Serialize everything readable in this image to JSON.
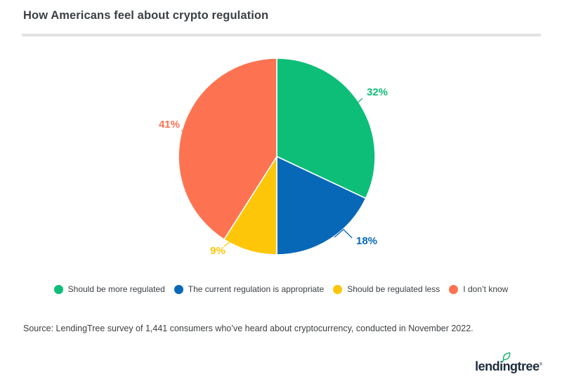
{
  "page": {
    "title": "How Americans feel about crypto regulation",
    "source": "Source: LendingTree survey of 1,441 consumers who’ve heard about cryptocurrency, conducted in November 2022.",
    "logo_text": "lendingtree",
    "logo_reg": "®"
  },
  "colors": {
    "title_text": "#3c4044",
    "divider": "#e2e2e2",
    "logo_navy": "#1e2c3c",
    "leaf_green": "#2bb673"
  },
  "chart_data": {
    "type": "pie",
    "title": "How Americans feel about crypto regulation",
    "categories": [
      "Should be more regulated",
      "The current regulation is appropriate",
      "Should be regulated less",
      "I don’t know"
    ],
    "values": [
      32,
      18,
      9,
      41
    ],
    "labels": [
      "32%",
      "18%",
      "9%",
      "41%"
    ],
    "colors": [
      "#0dbe78",
      "#0768b8",
      "#fdc609",
      "#fd7351"
    ],
    "start_angle": "top",
    "direction": "clockwise",
    "slice_border_color": "#ffffff",
    "legend_position": "bottom"
  }
}
